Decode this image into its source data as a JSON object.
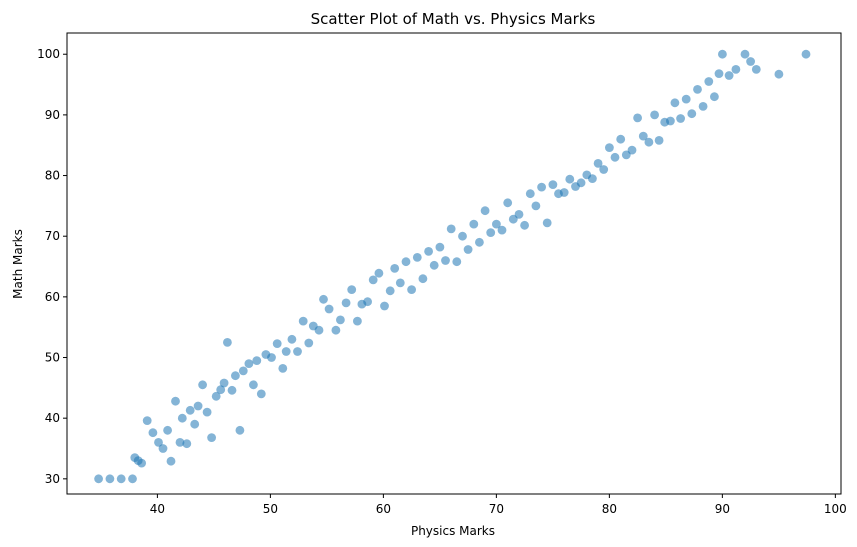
{
  "chart_data": {
    "type": "scatter",
    "title": "Scatter Plot of Math vs. Physics Marks",
    "xlabel": "Physics Marks",
    "ylabel": "Math Marks",
    "xlim": [
      32.0,
      100.5
    ],
    "ylim": [
      27.5,
      103.5
    ],
    "xticks": [
      40,
      50,
      60,
      70,
      80,
      90,
      100
    ],
    "yticks": [
      30,
      40,
      50,
      60,
      70,
      80,
      90,
      100
    ],
    "grid": false,
    "legend": "none",
    "marker_color": "#1f77b4",
    "marker_alpha": 0.55,
    "series": [
      {
        "x": [
          34.8,
          35.8,
          36.8,
          37.8,
          38.0,
          38.3,
          38.6,
          39.1,
          39.6,
          40.1,
          40.5,
          40.9,
          41.2,
          41.6,
          42.0,
          42.2,
          42.6,
          42.9,
          43.3,
          43.6,
          44.0,
          44.4,
          44.8,
          45.2,
          45.6,
          45.9,
          46.2,
          46.6,
          46.9,
          47.3,
          47.6,
          48.1,
          48.5,
          48.8,
          49.2,
          49.6,
          50.1,
          50.6,
          51.1,
          51.4,
          51.9,
          52.4,
          52.9,
          53.4,
          53.8,
          54.3,
          54.7,
          55.2,
          55.8,
          56.2,
          56.7,
          57.2,
          57.7,
          58.1,
          58.6,
          59.1,
          59.6,
          60.1,
          60.6,
          61.0,
          61.5,
          62.0,
          62.5,
          63.0,
          63.5,
          64.0,
          64.5,
          65.0,
          65.5,
          66.0,
          66.5,
          67.0,
          67.5,
          68.0,
          68.5,
          69.0,
          69.5,
          70.0,
          70.5,
          71.0,
          71.5,
          72.0,
          72.5,
          73.0,
          73.5,
          74.0,
          74.5,
          75.0,
          75.5,
          76.0,
          76.5,
          77.0,
          77.5,
          78.0,
          78.5,
          79.0,
          79.5,
          80.0,
          80.5,
          81.0,
          81.5,
          82.0,
          82.5,
          83.0,
          83.5,
          84.0,
          84.4,
          84.9,
          85.4,
          85.8,
          86.3,
          86.8,
          87.3,
          87.8,
          88.3,
          88.8,
          89.3,
          89.7,
          90.0,
          90.6,
          91.2,
          92.0,
          92.5,
          93.0,
          95.0,
          97.4
        ],
        "y": [
          30.0,
          30.0,
          30.0,
          30.0,
          33.5,
          33.0,
          32.6,
          39.6,
          37.6,
          36.0,
          35.0,
          38.0,
          32.9,
          42.8,
          36.0,
          40.0,
          35.8,
          41.3,
          39.0,
          42.0,
          45.5,
          41.0,
          36.8,
          43.6,
          44.7,
          45.8,
          52.5,
          44.6,
          47.0,
          38.0,
          47.8,
          49.0,
          45.5,
          49.5,
          44.0,
          50.5,
          50.0,
          52.3,
          48.2,
          51.0,
          53.0,
          51.0,
          56.0,
          52.4,
          55.2,
          54.5,
          59.6,
          58.0,
          54.5,
          56.2,
          59.0,
          61.2,
          56.0,
          58.8,
          59.2,
          62.8,
          63.9,
          58.5,
          61.0,
          64.7,
          62.3,
          65.8,
          61.2,
          66.5,
          63.0,
          67.5,
          65.2,
          68.2,
          66.0,
          71.2,
          65.8,
          70.0,
          67.8,
          72.0,
          69.0,
          74.2,
          70.6,
          72.0,
          71.0,
          75.5,
          72.8,
          73.6,
          71.8,
          77.0,
          75.0,
          78.1,
          72.2,
          78.5,
          77.0,
          77.2,
          79.4,
          78.2,
          78.8,
          80.1,
          79.5,
          82.0,
          81.0,
          84.6,
          83.0,
          86.0,
          83.4,
          84.2,
          89.5,
          86.5,
          85.5,
          90.0,
          85.8,
          88.8,
          89.0,
          92.0,
          89.4,
          92.6,
          90.2,
          94.2,
          91.4,
          95.5,
          93.0,
          96.8,
          100.0,
          96.5,
          97.5,
          100.0,
          98.8,
          97.5,
          96.7,
          100.0
        ]
      }
    ]
  }
}
